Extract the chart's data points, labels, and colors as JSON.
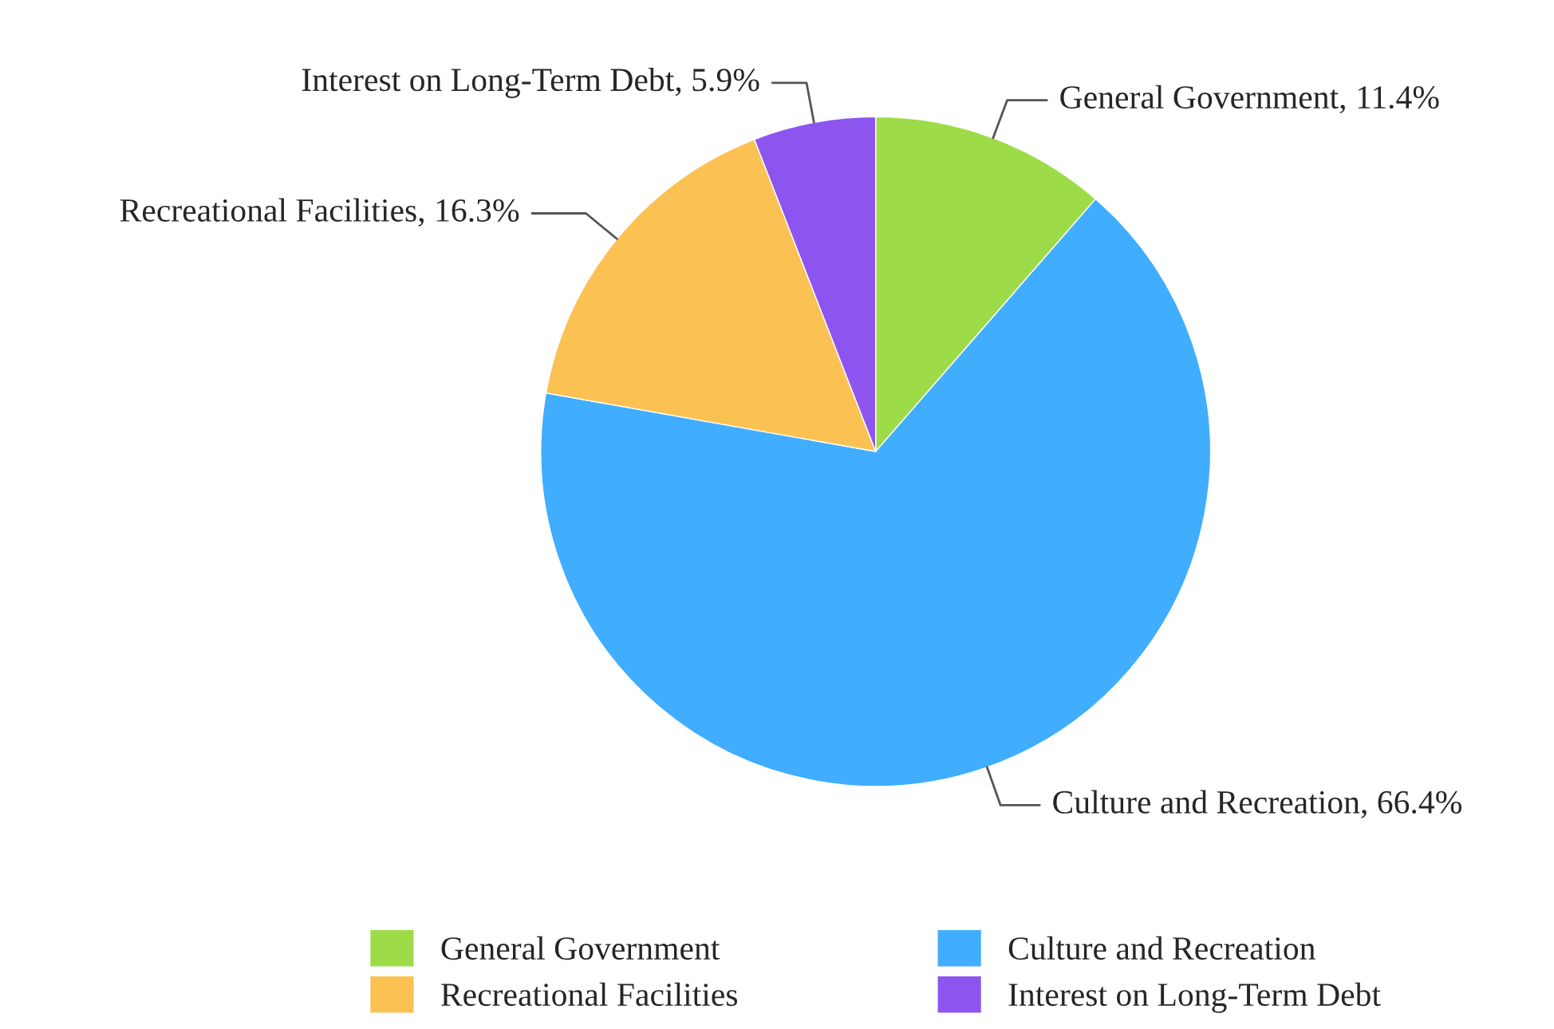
{
  "chart_data": {
    "type": "pie",
    "categories": [
      "General Government",
      "Culture and Recreation",
      "Recreational Facilities",
      "Interest on Long-Term Debt"
    ],
    "values": [
      11.4,
      66.4,
      16.3,
      5.9
    ],
    "value_labels": [
      "General Government, 11.4%",
      "Culture and Recreation, 66.4%",
      "Recreational Facilities, 16.3%",
      "Interest on Long-Term Debt, 5.9%"
    ],
    "colors": [
      "#9ddc48",
      "#41adff",
      "#fbc152",
      "#8d55f0"
    ],
    "legend": "bottom"
  }
}
